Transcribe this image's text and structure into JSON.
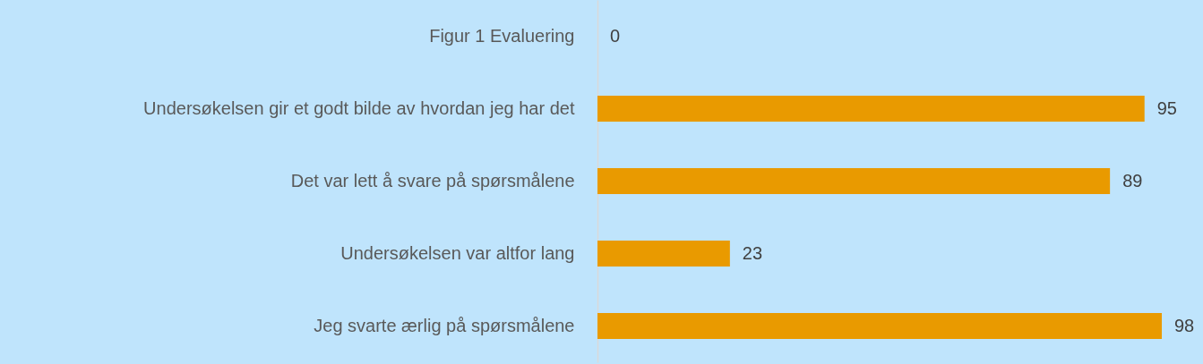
{
  "chart_data": {
    "type": "bar",
    "orientation": "horizontal",
    "categories": [
      "Figur 1 Evaluering",
      "Undersøkelsen gir et godt bilde av hvordan jeg har det",
      "Det var lett å svare på spørsmålene",
      "Undersøkelsen var altfor lang",
      "Jeg svarte ærlig på spørsmålene"
    ],
    "values": [
      0,
      95,
      89,
      23,
      98
    ],
    "color": "#e99a00",
    "data_labels": true,
    "grid": false
  }
}
